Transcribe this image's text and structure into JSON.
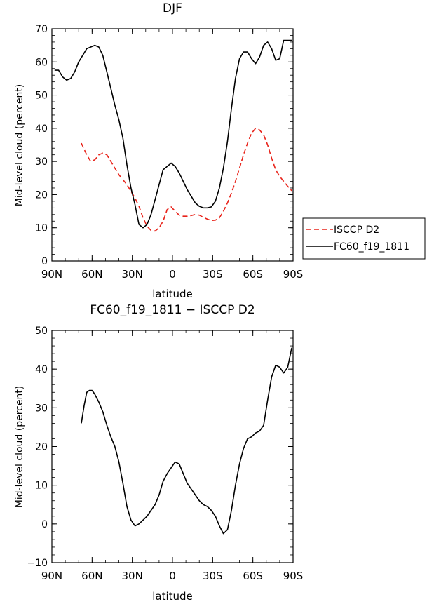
{
  "chart_data": [
    {
      "type": "line",
      "title": "DJF",
      "xlabel": "latitude",
      "ylabel": "Mid-level cloud (percent)",
      "xlim": [
        90,
        -90
      ],
      "ylim": [
        0,
        70
      ],
      "yticks": [
        0,
        10,
        20,
        30,
        40,
        50,
        60,
        70
      ],
      "xticks": [
        {
          "value": 90,
          "label": "90N"
        },
        {
          "value": 60,
          "label": "60N"
        },
        {
          "value": 30,
          "label": "30N"
        },
        {
          "value": 0,
          "label": "0"
        },
        {
          "value": -30,
          "label": "30S"
        },
        {
          "value": -60,
          "label": "60S"
        },
        {
          "value": -90,
          "label": "90S"
        }
      ],
      "legend_position": "right",
      "series": [
        {
          "name": "ISCCP D2",
          "color": "#e8231a",
          "dash": "dashed",
          "x": [
            68,
            64,
            61,
            58,
            55,
            52,
            49,
            46,
            43,
            40,
            37,
            34,
            31,
            28,
            25,
            22,
            19,
            16,
            13,
            10,
            7,
            4,
            1,
            -2,
            -5,
            -8,
            -11,
            -14,
            -17,
            -20,
            -23,
            -26,
            -29,
            -32,
            -35,
            -38,
            -41,
            -44,
            -47,
            -50,
            -53,
            -56,
            -59,
            -62,
            -65,
            -68,
            -71,
            -74,
            -77,
            -80,
            -83,
            -86,
            -89
          ],
          "y": [
            35.5,
            32,
            30,
            30.5,
            32,
            32.5,
            32,
            30,
            28,
            26,
            24.5,
            23,
            21,
            19,
            16.5,
            13,
            10.5,
            9.2,
            9,
            10,
            12,
            15.5,
            16.3,
            15,
            13.8,
            13.5,
            13.5,
            13.7,
            14,
            13.8,
            13.2,
            12.6,
            12.2,
            12.3,
            13,
            15,
            17.5,
            20.5,
            24,
            28,
            32,
            35.5,
            38.5,
            40,
            39.5,
            38,
            35,
            31,
            27.5,
            25.5,
            24,
            22.5,
            21.2
          ]
        },
        {
          "name": "FC60_f19_1811",
          "color": "#000000",
          "dash": "solid",
          "x": [
            88,
            85,
            82,
            79,
            76,
            73,
            70,
            67,
            64,
            61,
            58,
            55,
            52,
            49,
            46,
            43,
            40,
            37,
            34,
            31,
            28,
            25,
            22,
            19,
            16,
            13,
            10,
            7,
            4,
            1,
            -2,
            -5,
            -8,
            -11,
            -14,
            -17,
            -20,
            -23,
            -26,
            -29,
            -32,
            -35,
            -38,
            -41,
            -44,
            -47,
            -50,
            -53,
            -56,
            -59,
            -62,
            -65,
            -68,
            -71,
            -74,
            -77,
            -80,
            -83,
            -86,
            -89
          ],
          "y": [
            57.5,
            57.5,
            55.5,
            54.5,
            55,
            57,
            60,
            62,
            64,
            64.5,
            65,
            64.5,
            62,
            57,
            52,
            47,
            42.5,
            37,
            29,
            22,
            17,
            11,
            10,
            11,
            14,
            18.5,
            23,
            27.5,
            28.5,
            29.5,
            28.5,
            26.5,
            24,
            21.5,
            19.5,
            17.5,
            16.5,
            16,
            16,
            16.3,
            18,
            22,
            28,
            36,
            46,
            55,
            61,
            63,
            63,
            61,
            59.5,
            61.5,
            65,
            66,
            64,
            60.5,
            61,
            66.5,
            66.5,
            66.5
          ]
        }
      ]
    },
    {
      "type": "line",
      "title": "FC60_f19_1811 − ISCCP D2",
      "xlabel": "latitude",
      "ylabel": "Mid-level cloud (percent)",
      "xlim": [
        90,
        -90
      ],
      "ylim": [
        -10,
        50
      ],
      "yticks": [
        -10,
        0,
        10,
        20,
        30,
        40,
        50
      ],
      "xticks": [
        {
          "value": 90,
          "label": "90N"
        },
        {
          "value": 60,
          "label": "60N"
        },
        {
          "value": 30,
          "label": "30N"
        },
        {
          "value": 0,
          "label": "0"
        },
        {
          "value": -30,
          "label": "30S"
        },
        {
          "value": -60,
          "label": "60S"
        },
        {
          "value": -90,
          "label": "90S"
        }
      ],
      "series": [
        {
          "color": "#000000",
          "dash": "solid",
          "x": [
            68,
            66,
            64,
            62,
            60,
            58,
            55,
            52,
            49,
            46,
            43,
            40,
            37,
            34,
            31,
            28,
            25,
            22,
            19,
            16,
            13,
            10,
            7,
            4,
            1,
            -2,
            -5,
            -8,
            -11,
            -14,
            -17,
            -20,
            -23,
            -26,
            -29,
            -32,
            -35,
            -38,
            -41,
            -44,
            -47,
            -50,
            -53,
            -56,
            -59,
            -62,
            -65,
            -68,
            -71,
            -74,
            -77,
            -80,
            -83,
            -86,
            -89
          ],
          "y": [
            26,
            30.5,
            34,
            34.5,
            34.5,
            33.5,
            31.5,
            29,
            25.5,
            22.5,
            20,
            16,
            10.5,
            4.5,
            1,
            -0.5,
            0,
            1,
            2,
            3.5,
            5,
            7.5,
            11,
            13,
            14.5,
            16,
            15.5,
            13,
            10.5,
            9,
            7.5,
            6,
            5,
            4.5,
            3.5,
            2,
            -0.5,
            -2.5,
            -1.5,
            3.5,
            10,
            15.5,
            19.5,
            22,
            22.5,
            23.5,
            24,
            25.5,
            32,
            38,
            41,
            40.5,
            39,
            40.5,
            45.5
          ]
        }
      ]
    }
  ]
}
